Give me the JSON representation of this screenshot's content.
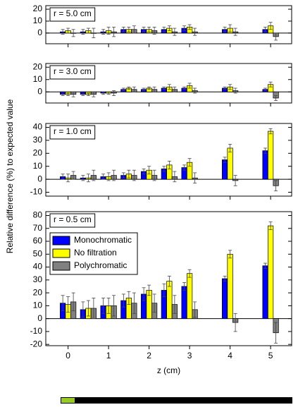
{
  "chart_data": [
    {
      "type": "bar",
      "annotation": "r = 5.0 cm",
      "x": [
        0,
        0.5,
        1,
        1.5,
        2,
        2.5,
        3,
        4,
        5
      ],
      "series": [
        {
          "name": "Monochromatic",
          "color": "#0000ff",
          "values": [
            1,
            1,
            1,
            3,
            3,
            3,
            4,
            3,
            3
          ],
          "errors": [
            2,
            2,
            2,
            2,
            2,
            2,
            2,
            2,
            2
          ]
        },
        {
          "name": "No filtration",
          "color": "#ffff00",
          "values": [
            2,
            2,
            2,
            3,
            3,
            4,
            5,
            4,
            6
          ],
          "errors": [
            2,
            2,
            3,
            2,
            2,
            2,
            2,
            3,
            3
          ]
        },
        {
          "name": "Polychromatic",
          "color": "#808080",
          "values": [
            0,
            0,
            1,
            3,
            2,
            1,
            1,
            1,
            -3
          ],
          "errors": [
            3,
            4,
            4,
            3,
            3,
            3,
            3,
            3,
            3
          ]
        }
      ],
      "ylim": [
        -9,
        23
      ],
      "yticks": [
        0,
        10,
        20
      ]
    },
    {
      "type": "bar",
      "annotation": "r = 3.0 cm",
      "x": [
        0,
        0.5,
        1,
        1.5,
        2,
        2.5,
        3,
        4,
        5
      ],
      "series": [
        {
          "name": "Monochromatic",
          "color": "#0000ff",
          "values": [
            -2,
            -2,
            -1,
            2,
            2,
            3,
            3,
            3,
            2
          ],
          "errors": [
            1,
            1,
            1,
            1,
            1,
            1,
            1,
            1,
            1
          ]
        },
        {
          "name": "No filtration",
          "color": "#ffff00",
          "values": [
            -2,
            -2,
            -1,
            3,
            3,
            4,
            5,
            4,
            6
          ],
          "errors": [
            1,
            1,
            1,
            1,
            1,
            2,
            2,
            2,
            2
          ]
        },
        {
          "name": "Polychromatic",
          "color": "#808080",
          "values": [
            -2,
            -2,
            -1,
            2,
            2,
            2,
            1,
            1,
            -5
          ],
          "errors": [
            2,
            2,
            2,
            2,
            2,
            2,
            2,
            2,
            2
          ]
        }
      ],
      "ylim": [
        -9,
        23
      ],
      "yticks": [
        0,
        10,
        20
      ]
    },
    {
      "type": "bar",
      "annotation": "r = 1.0 cm",
      "x": [
        0,
        0.5,
        1,
        1.5,
        2,
        2.5,
        3,
        4,
        5
      ],
      "series": [
        {
          "name": "Monochromatic",
          "color": "#0000ff",
          "values": [
            2,
            1,
            2,
            3,
            6,
            8,
            9,
            15,
            22
          ],
          "errors": [
            2,
            2,
            2,
            2,
            2,
            2,
            2,
            2,
            2
          ]
        },
        {
          "name": "No filtration",
          "color": "#ffff00",
          "values": [
            1,
            1,
            2,
            4,
            7,
            11,
            13,
            24,
            37
          ],
          "errors": [
            3,
            3,
            3,
            3,
            3,
            3,
            3,
            3,
            2
          ]
        },
        {
          "name": "Polychromatic",
          "color": "#808080",
          "values": [
            3,
            3,
            3,
            3,
            3,
            2,
            1,
            -1,
            -5
          ],
          "errors": [
            3,
            4,
            4,
            4,
            4,
            4,
            4,
            4,
            4
          ]
        }
      ],
      "ylim": [
        -13,
        43
      ],
      "yticks": [
        -10,
        0,
        10,
        20,
        30,
        40
      ]
    },
    {
      "type": "bar",
      "annotation": "r = 0.5 cm",
      "x": [
        0,
        0.5,
        1,
        1.5,
        2,
        2.5,
        3,
        4,
        5
      ],
      "series": [
        {
          "name": "Monochromatic",
          "color": "#0000ff",
          "values": [
            12,
            7,
            10,
            14,
            19,
            22,
            25,
            31,
            41
          ],
          "errors": [
            6,
            6,
            6,
            5,
            5,
            5,
            3,
            2,
            2
          ]
        },
        {
          "name": "No filtration",
          "color": "#ffff00",
          "values": [
            11,
            8,
            10,
            16,
            22,
            29,
            35,
            50,
            72
          ],
          "errors": [
            6,
            6,
            6,
            5,
            4,
            4,
            3,
            3,
            3
          ]
        },
        {
          "name": "Polychromatic",
          "color": "#808080",
          "values": [
            13,
            8,
            10,
            12,
            12,
            11,
            7,
            -3,
            -11
          ],
          "errors": [
            7,
            8,
            8,
            8,
            7,
            7,
            6,
            7,
            8
          ]
        }
      ],
      "ylim": [
        -21,
        83
      ],
      "yticks": [
        -20,
        -10,
        0,
        10,
        20,
        30,
        40,
        50,
        60,
        70,
        80
      ],
      "legend": "upper left",
      "xlim": [
        -0.55,
        5.52
      ],
      "xticks": [
        0,
        1,
        2,
        3,
        4,
        5
      ],
      "xlabel": "z (cm)",
      "ylabel": "Relative difference (%) to expected value"
    }
  ]
}
